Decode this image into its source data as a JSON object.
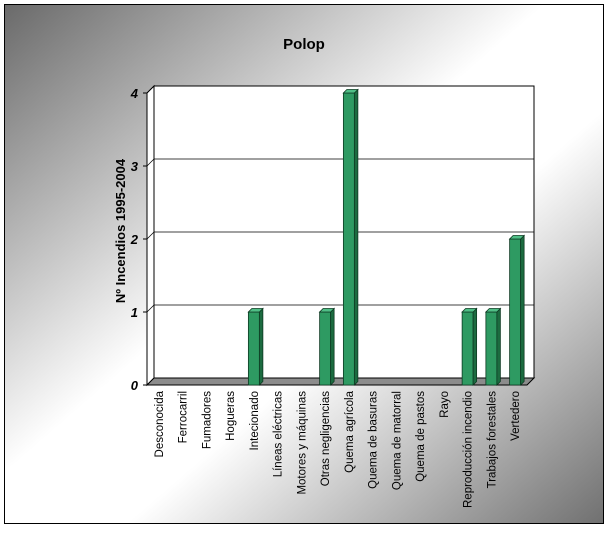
{
  "chart_data": {
    "type": "bar",
    "title": "Polop",
    "ylabel": "Nº Incendios 1995-2004",
    "xlabel": "",
    "categories": [
      "Desconocida",
      "Ferrocarril",
      "Fumadores",
      "Hogueras",
      "Intecionado",
      "Líneas eléctricas",
      "Motores y máquinas",
      "Otras negligencias",
      "Quema agrícola",
      "Quema de basuras",
      "Quema de matorral",
      "Quema de pastos",
      "Rayo",
      "Reproducción incendio",
      "Trabajos forestales",
      "Vertedero"
    ],
    "values": [
      0,
      0,
      0,
      0,
      1,
      0,
      0,
      1,
      4,
      0,
      0,
      0,
      0,
      1,
      1,
      2
    ],
    "ylim": [
      0,
      4
    ],
    "yticks": [
      0,
      1,
      2,
      3,
      4
    ],
    "grid": true,
    "legend": "none",
    "colors": {
      "bar_front": "#2e9a62",
      "bar_side": "#1c6b40",
      "bar_top": "#4fbf86",
      "bar_edge": "#0d3a22",
      "floor": "#8c8c8c",
      "gridline": "#000000",
      "plot_bg": "#ffffff"
    }
  }
}
